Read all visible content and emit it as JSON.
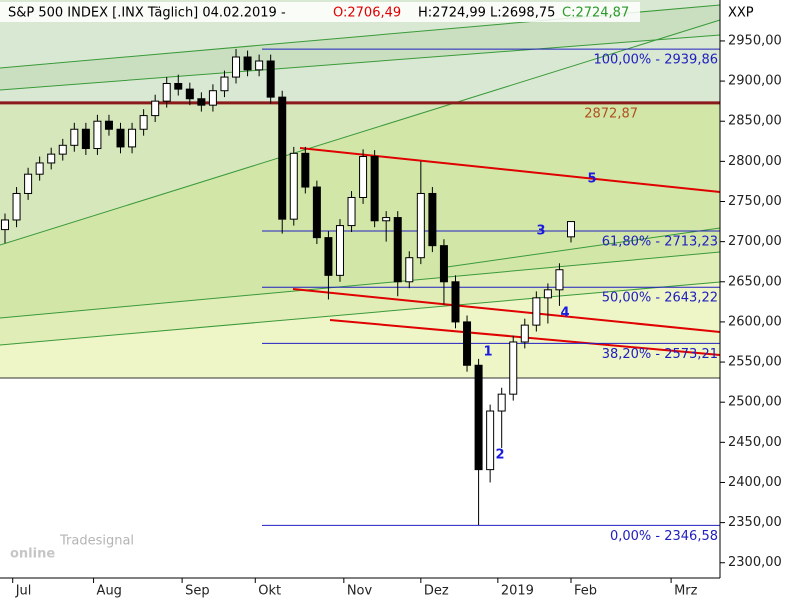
{
  "chart_data": {
    "type": "candlestick",
    "title": "S&P 500 INDEX [.INX  Täglich] 04.02.2019 -",
    "title_open": "O:2706,49",
    "title_high": "H:2724,99",
    "title_low": "L:2698,75",
    "title_close": "C:2724,87",
    "axis_label": "XXP",
    "watermark_sub": "Tradesignal",
    "watermark": "online",
    "up_color": "#ffffff",
    "down_color": "#000000",
    "ylim": [
      2281,
      3001
    ],
    "yticks": [
      {
        "value": 2300,
        "label": "2300,00"
      },
      {
        "value": 2350,
        "label": "2350,00"
      },
      {
        "value": 2400,
        "label": "2400,00"
      },
      {
        "value": 2450,
        "label": "2450,00"
      },
      {
        "value": 2500,
        "label": "2500,00"
      },
      {
        "value": 2550,
        "label": "2550,00"
      },
      {
        "value": 2600,
        "label": "2600,00"
      },
      {
        "value": 2650,
        "label": "2650,00"
      },
      {
        "value": 2700,
        "label": "2700,00"
      },
      {
        "value": 2750,
        "label": "2750,00"
      },
      {
        "value": 2800,
        "label": "2800,00"
      },
      {
        "value": 2850,
        "label": "2850,00"
      },
      {
        "value": 2900,
        "label": "2900,00"
      },
      {
        "value": 2950,
        "label": "2950,00"
      }
    ],
    "xlim": [
      -1.3,
      185.7
    ],
    "xticks": [
      {
        "value": 2,
        "label": "Jul"
      },
      {
        "value": 23,
        "label": "Aug"
      },
      {
        "value": 46,
        "label": "Sep"
      },
      {
        "value": 65,
        "label": "Okt"
      },
      {
        "value": 88,
        "label": "Nov"
      },
      {
        "value": 108,
        "label": "Dez"
      },
      {
        "value": 128,
        "label": "2019"
      },
      {
        "value": 147,
        "label": "Feb"
      },
      {
        "value": 173,
        "label": "Mrz"
      }
    ],
    "x": [
      0,
      3,
      6,
      9,
      12,
      15,
      18,
      21,
      24,
      27,
      30,
      33,
      36,
      39,
      42,
      45,
      48,
      51,
      54,
      57,
      60,
      63,
      66,
      69,
      72,
      75,
      78,
      81,
      84,
      87,
      90,
      93,
      96,
      99,
      102,
      105,
      108,
      111,
      114,
      117,
      120,
      123,
      126,
      129,
      132,
      135,
      138,
      141,
      144,
      147
    ],
    "open": [
      2715,
      2727,
      2760,
      2784,
      2798,
      2809,
      2820,
      2840,
      2816,
      2850,
      2840,
      2818,
      2840,
      2857,
      2875,
      2897,
      2890,
      2878,
      2870,
      2888,
      2905,
      2930,
      2914,
      2925,
      2880,
      2728,
      2810,
      2768,
      2705,
      2658,
      2720,
      2755,
      2806,
      2726,
      2730,
      2650,
      2680,
      2760,
      2695,
      2650,
      2600,
      2546,
      2416,
      2489,
      2510,
      2575,
      2596,
      2630,
      2640,
      2706
    ],
    "high": [
      2735,
      2768,
      2792,
      2806,
      2817,
      2828,
      2848,
      2848,
      2858,
      2858,
      2848,
      2848,
      2865,
      2883,
      2905,
      2908,
      2898,
      2886,
      2896,
      2913,
      2940,
      2938,
      2933,
      2933,
      2888,
      2818,
      2818,
      2776,
      2713,
      2728,
      2763,
      2815,
      2814,
      2738,
      2738,
      2688,
      2800,
      2768,
      2703,
      2658,
      2608,
      2554,
      2497,
      2518,
      2583,
      2604,
      2638,
      2648,
      2673,
      2725
    ],
    "low": [
      2698,
      2718,
      2752,
      2776,
      2790,
      2801,
      2812,
      2808,
      2808,
      2832,
      2810,
      2810,
      2832,
      2849,
      2867,
      2882,
      2870,
      2862,
      2862,
      2880,
      2897,
      2906,
      2906,
      2872,
      2710,
      2720,
      2760,
      2697,
      2628,
      2650,
      2712,
      2747,
      2718,
      2700,
      2632,
      2642,
      2672,
      2687,
      2621,
      2592,
      2538,
      2347,
      2400,
      2443,
      2502,
      2567,
      2588,
      2598,
      2620,
      2699
    ],
    "close": [
      2727,
      2760,
      2784,
      2798,
      2809,
      2820,
      2840,
      2816,
      2850,
      2840,
      2818,
      2840,
      2857,
      2875,
      2897,
      2890,
      2878,
      2870,
      2888,
      2905,
      2930,
      2914,
      2925,
      2880,
      2728,
      2810,
      2768,
      2705,
      2658,
      2720,
      2755,
      2806,
      2726,
      2730,
      2650,
      2680,
      2760,
      2695,
      2650,
      2600,
      2546,
      2416,
      2489,
      2510,
      2575,
      2596,
      2630,
      2640,
      2665,
      2725
    ],
    "fib_levels": [
      {
        "value": 2939.86,
        "label": "100,00% - 2939,86"
      },
      {
        "value": 2713.23,
        "label": "61,80% - 2713,23"
      },
      {
        "value": 2643.22,
        "label": "50,00% - 2643,22"
      },
      {
        "value": 2573.21,
        "label": "38,20% - 2573,21"
      },
      {
        "value": 2346.58,
        "label": "0,00% - 2346,58"
      }
    ],
    "fib_color": "#2020c0",
    "resistance": {
      "value": 2872.87,
      "label": "2872,87",
      "color": "#8b1a1a"
    },
    "waves": [
      "1",
      "2",
      "3",
      "4",
      "5"
    ]
  }
}
